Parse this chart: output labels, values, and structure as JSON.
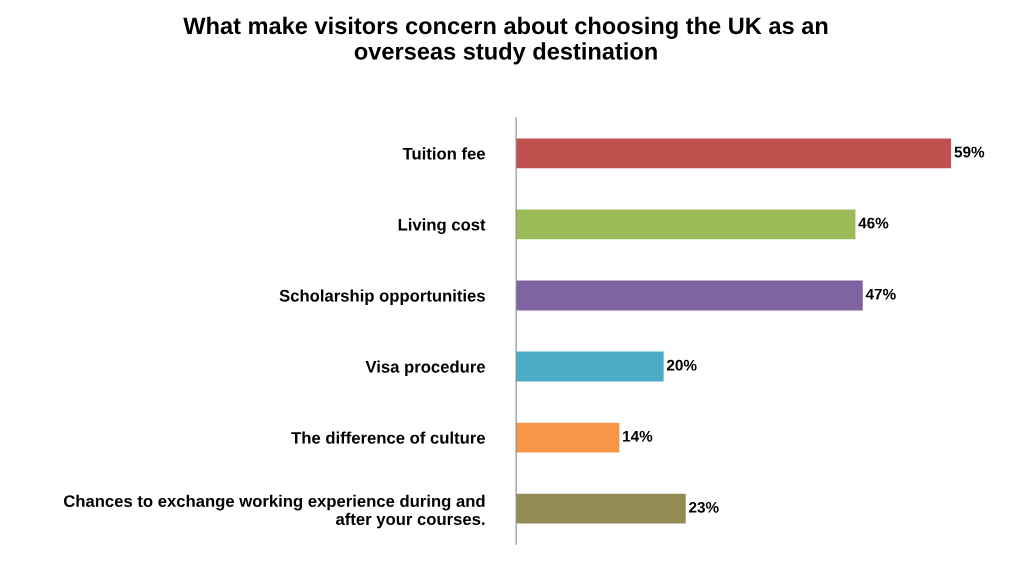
{
  "chart_data": {
    "type": "bar",
    "orientation": "horizontal",
    "title": "What make visitors concern about choosing the UK as an\noverseas study destination",
    "categories": [
      "Tuition fee",
      "Living cost",
      "Scholarship opportunities",
      "Visa procedure",
      "The difference of culture",
      "Chances to exchange working experience during and\nafter your courses."
    ],
    "values": [
      59,
      46,
      47,
      20,
      14,
      23
    ],
    "colors": [
      "#c0504d",
      "#9bbb59",
      "#8064a2",
      "#4bacc6",
      "#f79646",
      "#948a54"
    ],
    "value_labels": [
      "59%",
      "46%",
      "47%",
      "20%",
      "14%",
      "23%"
    ],
    "grid": false,
    "legend": false
  }
}
